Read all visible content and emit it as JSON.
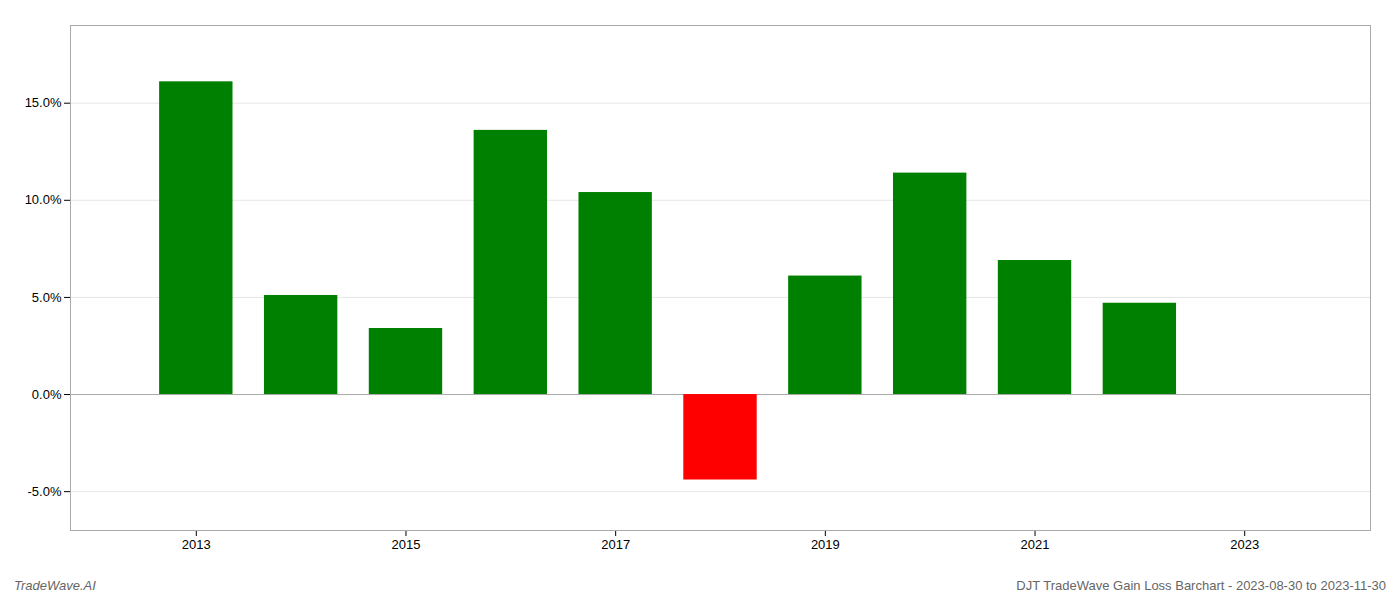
{
  "chart_data": {
    "type": "bar",
    "title": "DJT TradeWave Gain Loss Barchart - 2023-08-30 to 2023-11-30",
    "annotations": [
      "TradeWave.AI"
    ],
    "x": [
      2013,
      2014,
      2015,
      2016,
      2017,
      2018,
      2019,
      2020,
      2021,
      2022
    ],
    "values": [
      0.161,
      0.051,
      0.034,
      0.136,
      0.104,
      -0.044,
      0.061,
      0.114,
      0.069,
      0.047
    ],
    "colors": [
      "#008000",
      "#008000",
      "#008000",
      "#008000",
      "#008000",
      "#ff0000",
      "#008000",
      "#008000",
      "#008000",
      "#008000"
    ],
    "xlim": [
      2011.8,
      2024.2
    ],
    "xticks": [
      2013,
      2015,
      2017,
      2019,
      2021,
      2023
    ],
    "ylim": [
      -0.07,
      0.19
    ],
    "yticks": [
      {
        "value": -0.05,
        "label": "-5.0%"
      },
      {
        "value": 0.0,
        "label": "0.0%"
      },
      {
        "value": 0.05,
        "label": "5.0%"
      },
      {
        "value": 0.1,
        "label": "10.0%"
      },
      {
        "value": 0.15,
        "label": "15.0%"
      }
    ],
    "grid": true
  }
}
